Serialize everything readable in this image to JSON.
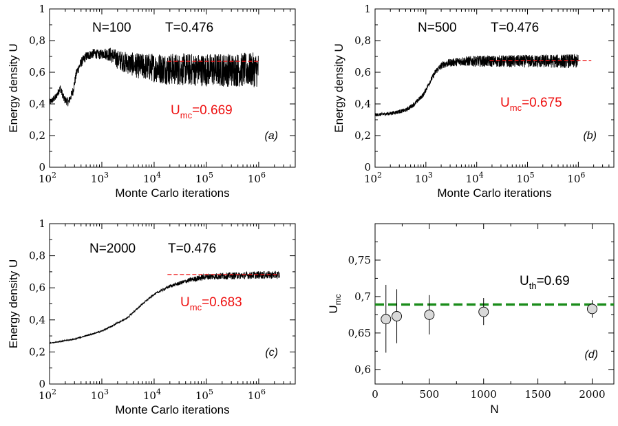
{
  "chart_data": [
    {
      "type": "line",
      "panel": "(a)",
      "xlabel": "Monte Carlo iterations",
      "ylabel": "Energy  density U",
      "xscale": "log",
      "xlim": [
        100,
        5000000
      ],
      "ylim": [
        0,
        1
      ],
      "yticks": [
        "0",
        "0,2",
        "0,4",
        "0,6",
        "0,8",
        "1"
      ],
      "xticks": [
        {
          "base": "10",
          "exp": "2"
        },
        {
          "base": "10",
          "exp": "3"
        },
        {
          "base": "10",
          "exp": "4"
        },
        {
          "base": "10",
          "exp": "5"
        },
        {
          "base": "10",
          "exp": "6"
        }
      ],
      "annotation_left": "N=100",
      "annotation_right": "T=0.476",
      "umc_label": {
        "main": "U",
        "sub": "mc",
        "value": "=0.669"
      },
      "umc": 0.669,
      "dashed_from": 18000,
      "dashed_to": 1000000,
      "x_end": 1000000,
      "series": [
        {
          "trend": [
            [
              100,
              0.41
            ],
            [
              130,
              0.44
            ],
            [
              160,
              0.5
            ],
            [
              190,
              0.43
            ],
            [
              230,
              0.41
            ],
            [
              280,
              0.48
            ],
            [
              330,
              0.6
            ],
            [
              400,
              0.66
            ],
            [
              500,
              0.7
            ],
            [
              700,
              0.72
            ],
            [
              900,
              0.71
            ],
            [
              1100,
              0.72
            ],
            [
              1500,
              0.71
            ],
            [
              2000,
              0.68
            ],
            [
              3000,
              0.66
            ],
            [
              5000,
              0.64
            ],
            [
              10000,
              0.63
            ],
            [
              20000,
              0.62
            ],
            [
              100000,
              0.615
            ],
            [
              1000000,
              0.615
            ]
          ],
          "noise": [
            [
              100,
              0.02
            ],
            [
              300,
              0.03
            ],
            [
              1000,
              0.03
            ],
            [
              2000,
              0.06
            ],
            [
              5000,
              0.08
            ],
            [
              15000,
              0.1
            ],
            [
              1000000,
              0.11
            ]
          ]
        }
      ]
    },
    {
      "type": "line",
      "panel": "(b)",
      "xlabel": "Monte Carlo iterations",
      "ylabel": "Energy  density U",
      "xscale": "log",
      "xlim": [
        100,
        5000000
      ],
      "ylim": [
        0,
        1
      ],
      "yticks": [
        "0",
        "0,2",
        "0,4",
        "0,6",
        "0,8",
        "1"
      ],
      "xticks": [
        {
          "base": "10",
          "exp": "2"
        },
        {
          "base": "10",
          "exp": "3"
        },
        {
          "base": "10",
          "exp": "4"
        },
        {
          "base": "10",
          "exp": "5"
        },
        {
          "base": "10",
          "exp": "6"
        }
      ],
      "annotation_left": "N=500",
      "annotation_right": "T=0.476",
      "umc_label": {
        "main": "U",
        "sub": "mc",
        "value": "=0.675"
      },
      "umc": 0.675,
      "dashed_from": 18000,
      "dashed_to": 1800000,
      "x_end": 1000000,
      "series": [
        {
          "trend": [
            [
              100,
              0.33
            ],
            [
              200,
              0.34
            ],
            [
              400,
              0.36
            ],
            [
              600,
              0.4
            ],
            [
              900,
              0.46
            ],
            [
              1200,
              0.54
            ],
            [
              1600,
              0.61
            ],
            [
              2200,
              0.65
            ],
            [
              3000,
              0.66
            ],
            [
              5000,
              0.67
            ],
            [
              10000,
              0.67
            ],
            [
              100000,
              0.67
            ],
            [
              1000000,
              0.67
            ]
          ],
          "noise": [
            [
              100,
              0.01
            ],
            [
              1000,
              0.015
            ],
            [
              3000,
              0.025
            ],
            [
              10000,
              0.035
            ],
            [
              1000000,
              0.045
            ]
          ]
        }
      ]
    },
    {
      "type": "line",
      "panel": "(c)",
      "xlabel": "Monte Carlo  iterations",
      "ylabel": "Energy  density U",
      "xscale": "log",
      "xlim": [
        100,
        5000000
      ],
      "ylim": [
        0,
        1
      ],
      "yticks": [
        "0",
        "0,2",
        "0,4",
        "0,6",
        "0,8",
        "1"
      ],
      "xticks": [
        {
          "base": "10",
          "exp": "2"
        },
        {
          "base": "10",
          "exp": "3"
        },
        {
          "base": "10",
          "exp": "4"
        },
        {
          "base": "10",
          "exp": "5"
        },
        {
          "base": "10",
          "exp": "6"
        }
      ],
      "annotation_left": "N=2000",
      "annotation_right": "T=0.476",
      "umc_label": {
        "main": "U",
        "sub": "mc",
        "value": "=0.683"
      },
      "umc": 0.683,
      "dashed_from": 18000,
      "dashed_to": 2500000,
      "x_end": 2500000,
      "series": [
        {
          "trend": [
            [
              100,
              0.255
            ],
            [
              300,
              0.28
            ],
            [
              1000,
              0.33
            ],
            [
              3000,
              0.41
            ],
            [
              6000,
              0.5
            ],
            [
              10000,
              0.56
            ],
            [
              20000,
              0.61
            ],
            [
              50000,
              0.65
            ],
            [
              100000,
              0.67
            ],
            [
              300000,
              0.675
            ],
            [
              1000000,
              0.68
            ],
            [
              2500000,
              0.68
            ]
          ],
          "noise": [
            [
              100,
              0.003
            ],
            [
              10000,
              0.006
            ],
            [
              30000,
              0.012
            ],
            [
              100000,
              0.02
            ],
            [
              2500000,
              0.025
            ]
          ]
        }
      ]
    },
    {
      "type": "scatter",
      "panel": "(d)",
      "xlabel": "N",
      "ylabel": {
        "main": "U",
        "sub": "mc"
      },
      "xlim": [
        0,
        2200
      ],
      "ylim": [
        0.58,
        0.8
      ],
      "xticks": [
        "0",
        "500",
        "1000",
        "1500",
        "2000"
      ],
      "yticks": [
        "0,6",
        "0,65",
        "0,7",
        "0,75"
      ],
      "uth_label": {
        "main": "U",
        "sub": "th",
        "value": "=0.69"
      },
      "uth": 0.689,
      "points": [
        {
          "x": 100,
          "y": 0.669,
          "ylo": 0.623,
          "yhi": 0.716
        },
        {
          "x": 200,
          "y": 0.673,
          "ylo": 0.636,
          "yhi": 0.71
        },
        {
          "x": 500,
          "y": 0.675,
          "ylo": 0.648,
          "yhi": 0.702
        },
        {
          "x": 1000,
          "y": 0.679,
          "ylo": 0.661,
          "yhi": 0.698
        },
        {
          "x": 2000,
          "y": 0.683,
          "ylo": 0.671,
          "yhi": 0.695
        }
      ]
    }
  ],
  "colors": {
    "axis": "#000000",
    "trace": "#000000",
    "mc_line": "#ee1111",
    "th_line": "#1a8c1a",
    "marker_fill": "#d9d9d9"
  }
}
